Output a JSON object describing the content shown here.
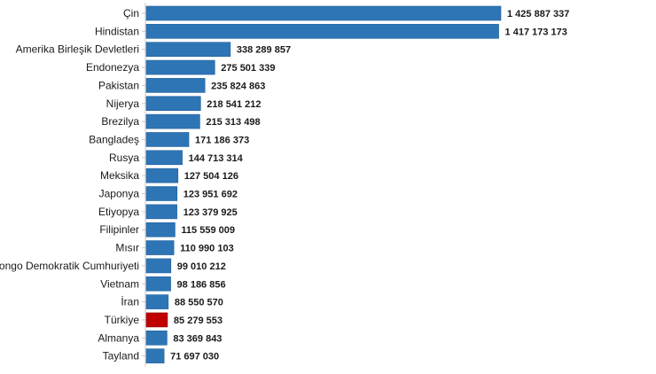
{
  "chart_data": {
    "type": "bar",
    "orientation": "horizontal",
    "title": "",
    "xlabel": "",
    "ylabel": "",
    "grid": false,
    "legend": "none",
    "xlim": [
      0,
      1425887337
    ],
    "categories": [
      "Çin",
      "Hindistan",
      "Amerika Birleşik Devletleri",
      "Endonezya",
      "Pakistan",
      "Nijerya",
      "Brezilya",
      "Bangladeş",
      "Rusya",
      "Meksika",
      "Japonya",
      "Etiyopya",
      "Filipinler",
      "Mısır",
      "Kongo Demokratik Cumhuriyeti",
      "Vietnam",
      "İran",
      "Türkiye",
      "Almanya",
      "Tayland"
    ],
    "values": [
      1425887337,
      1417173173,
      338289857,
      275501339,
      235824863,
      218541212,
      215313498,
      171186373,
      144713314,
      127504126,
      123951692,
      123379925,
      115559009,
      110990103,
      99010212,
      98186856,
      88550570,
      85279553,
      83369843,
      71697030
    ],
    "value_labels": [
      "1 425 887 337",
      "1 417 173 173",
      "338 289 857",
      "275 501 339",
      "235 824 863",
      "218 541 212",
      "215 313 498",
      "171 186 373",
      "144 713 314",
      "127 504 126",
      "123 951 692",
      "123 379 925",
      "115 559 009",
      "110 990 103",
      "99 010 212",
      "98 186 856",
      "88 550 570",
      "85 279 553",
      "83 369 843",
      "71 697 030"
    ],
    "colors": {
      "bar": "#2e75b6",
      "bar_edge": "#1f5f99",
      "highlight": "#c00000",
      "highlight_edge": "#8b0000"
    },
    "highlight_category": "Türkiye"
  }
}
